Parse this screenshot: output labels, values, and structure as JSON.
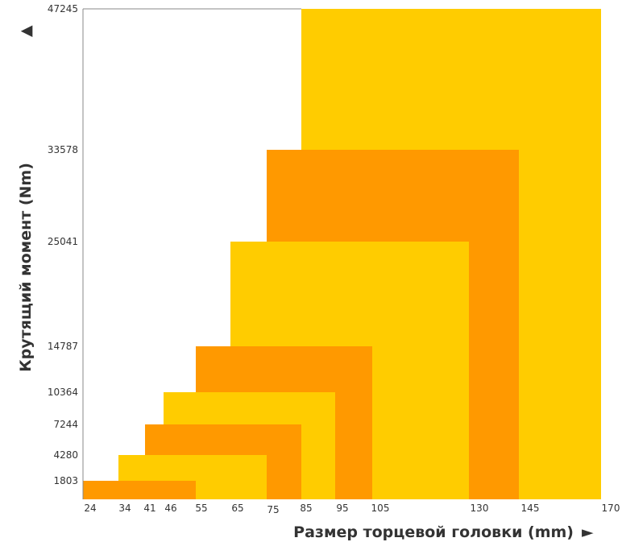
{
  "chart_data": {
    "type": "bar",
    "xlabel": "Размер торцевой головки (mm)",
    "ylabel": "Крутящий момент (Nm)",
    "x_arrow": "►",
    "y_arrow": "▲",
    "x_ticks": [
      "24",
      "34",
      "41",
      "46",
      "55",
      "65",
      "75",
      "85",
      "95",
      "105",
      "130",
      "145",
      "170"
    ],
    "y_ticks": [
      "1803",
      "4280",
      "7244",
      "10364",
      "14787",
      "25041",
      "33578",
      "47245"
    ],
    "rects": [
      {
        "x_start": 24,
        "x_end": 55,
        "torque": 1803,
        "color": "#FF9900"
      },
      {
        "x_start": 34,
        "x_end": 75,
        "torque": 4280,
        "color": "#FFCC00"
      },
      {
        "x_start": 41,
        "x_end": 85,
        "torque": 7244,
        "color": "#FF9900"
      },
      {
        "x_start": 46,
        "x_end": 95,
        "torque": 10364,
        "color": "#FFCC00"
      },
      {
        "x_start": 55,
        "x_end": 105,
        "torque": 14787,
        "color": "#FF9900"
      },
      {
        "x_start": 65,
        "x_end": 130,
        "torque": 25041,
        "color": "#FFCC00"
      },
      {
        "x_start": 75,
        "x_end": 145,
        "torque": 33578,
        "color": "#FF9900"
      },
      {
        "x_start": 85,
        "x_end": 170,
        "torque": 47245,
        "color": "#FFCC00"
      }
    ],
    "grid": false
  }
}
